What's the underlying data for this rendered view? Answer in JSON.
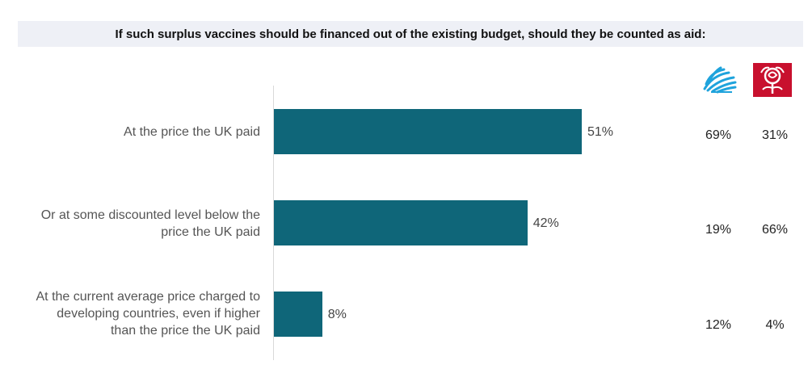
{
  "chart_data": {
    "type": "bar",
    "orientation": "horizontal",
    "title": "If such surplus vaccines should be financed out of the existing budget, should they be counted as aid:",
    "categories": [
      "At the price the UK paid",
      "Or at some discounted level below the\nprice the UK paid",
      "At the current average price charged to\ndeveloping countries, even if higher\nthan the price the UK paid"
    ],
    "values": [
      51,
      42,
      8
    ],
    "value_labels": [
      "51%",
      "42%",
      "8%"
    ],
    "xlim": [
      0,
      100
    ],
    "grid": false,
    "party_breakdown": {
      "columns": [
        {
          "icon": "conservative-tree-logo-icon",
          "color": "#1fa3dc",
          "values": [
            "69%",
            "19%",
            "12%"
          ]
        },
        {
          "icon": "labour-rose-logo-icon",
          "color": "#c8102e",
          "values": [
            "31%",
            "66%",
            "4%"
          ]
        }
      ]
    }
  },
  "colors": {
    "bar": "#0f6679",
    "title_background": "#eef0f6"
  }
}
